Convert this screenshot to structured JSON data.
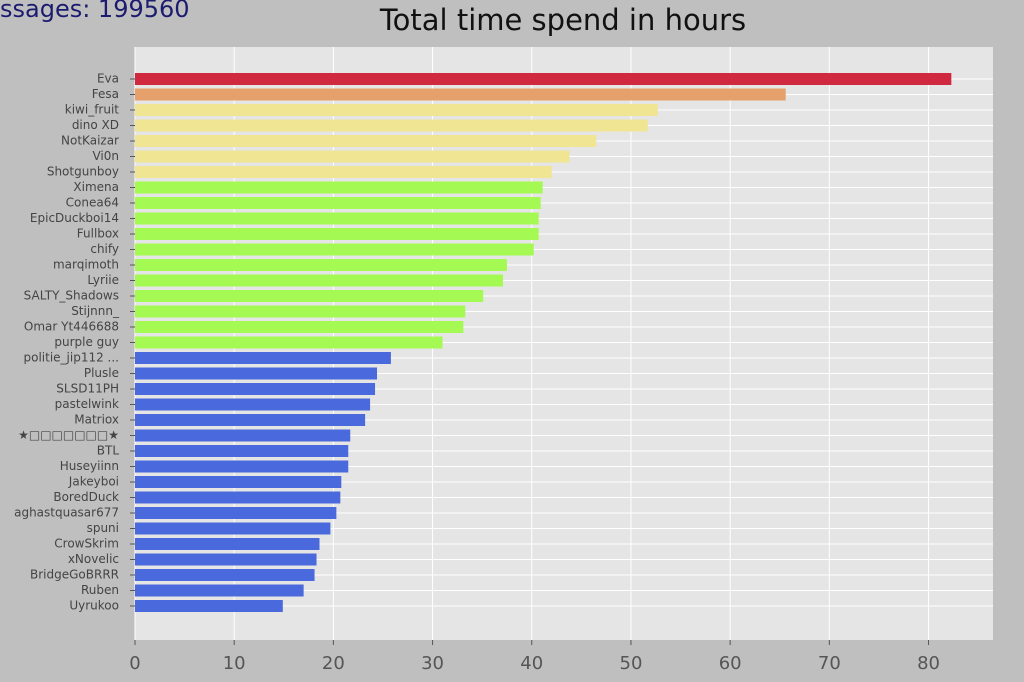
{
  "chart_data": {
    "type": "barh",
    "title": "Total time spend in hours",
    "corner_text": "ssages: 199560",
    "categories": [
      "Eva",
      "Fesa",
      "kiwi_fruit",
      "dino XD",
      "NotKaizar",
      "Vi0n",
      "Shotgunboy",
      "Ximena",
      "Conea64",
      "EpicDuckboi14",
      "Fullbox",
      "chify",
      "marqimoth",
      "Lyriie",
      "SALTY_Shadows",
      "Stijnnn_",
      "Omar Yt446688",
      "purple guy",
      "politie_jip112 ...",
      "Plusle",
      "SLSD11PH",
      "pastelwink",
      "Matriox",
      "★□□□□□□□★",
      "BTL",
      "Huseyiinn",
      "Jakeyboi",
      "BoredDuck",
      "aghastquasar677",
      "spuni",
      "CrowSkrim",
      "xNovelic",
      "BridgeGoBRRR",
      "Ruben",
      "Uyrukoo"
    ],
    "values": [
      82.3,
      65.6,
      52.7,
      51.7,
      46.5,
      43.8,
      42.0,
      41.1,
      40.9,
      40.7,
      40.7,
      40.2,
      37.5,
      37.1,
      35.1,
      33.3,
      33.1,
      31.0,
      25.8,
      24.4,
      24.2,
      23.7,
      23.2,
      21.7,
      21.5,
      21.5,
      20.8,
      20.7,
      20.3,
      19.7,
      18.6,
      18.3,
      18.1,
      17.0,
      14.9
    ],
    "colors": [
      "#d0283f",
      "#e6a06b",
      "#efe592",
      "#efe592",
      "#efe592",
      "#efe592",
      "#efe592",
      "#a4fa52",
      "#a4fa52",
      "#a4fa52",
      "#a4fa52",
      "#a4fa52",
      "#a4fa52",
      "#a4fa52",
      "#a4fa52",
      "#a4fa52",
      "#a4fa52",
      "#a4fa52",
      "#4a69dc",
      "#4a69dc",
      "#4a69dc",
      "#4a69dc",
      "#4a69dc",
      "#4a69dc",
      "#4a69dc",
      "#4a69dc",
      "#4a69dc",
      "#4a69dc",
      "#4a69dc",
      "#4a69dc",
      "#4a69dc",
      "#4a69dc",
      "#4a69dc",
      "#4a69dc",
      "#4a69dc"
    ],
    "xlim": [
      0,
      86.5
    ],
    "xticks": [
      0,
      10,
      20,
      30,
      40,
      50,
      60,
      70,
      80
    ],
    "grid": true
  }
}
